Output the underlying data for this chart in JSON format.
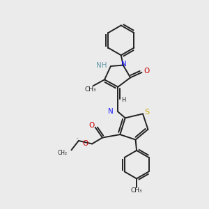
{
  "bg_color": "#ebebeb",
  "atom_color_N": "#1a1aff",
  "atom_color_N_dim": "#6699aa",
  "atom_color_O": "#cc0000",
  "atom_color_S": "#ccaa00",
  "bond_color": "#222222",
  "bond_lw": 1.4,
  "fig_width": 3.0,
  "fig_height": 3.0,
  "dpi": 100,
  "xlim": [
    0,
    10
  ],
  "ylim": [
    0,
    10
  ]
}
